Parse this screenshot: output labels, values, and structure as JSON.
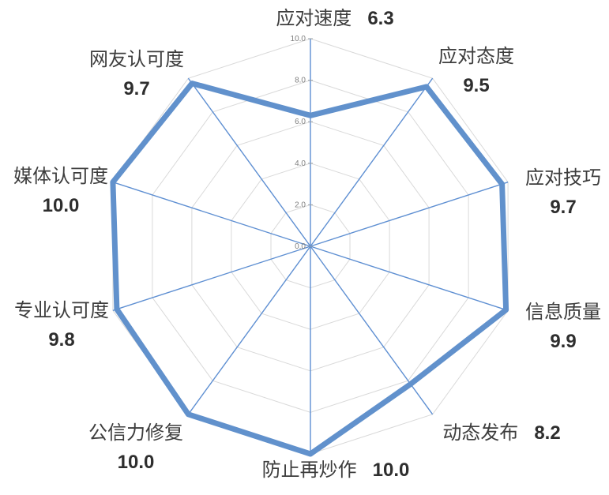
{
  "chart_data": {
    "type": "radar",
    "categories": [
      "应对速度",
      "应对态度",
      "应对技巧",
      "信息质量",
      "动态发布",
      "防止再炒作",
      "公信力修复",
      "专业认可度",
      "媒体认可度",
      "网友认可度"
    ],
    "values": [
      6.3,
      9.5,
      9.7,
      9.9,
      8.2,
      10.0,
      10.0,
      9.8,
      10.0,
      9.7
    ],
    "value_labels": [
      "6.3",
      "9.5",
      "9.7",
      "9.9",
      "8.2",
      "10.0",
      "10.0",
      "9.8",
      "10.0",
      "9.7"
    ],
    "axis": {
      "min": 0,
      "max": 10,
      "step": 2,
      "tick_labels": [
        "0.0",
        "2.0",
        "4.0",
        "6.0",
        "8.0",
        "10.0"
      ]
    },
    "grid": true,
    "legend_position": "none",
    "title": "",
    "colors": {
      "series_stroke": "#6191cc",
      "spoke_stroke": "#5e8fd2",
      "grid_stroke": "#d9d9d9",
      "tick_text": "#7f7f7f",
      "tick_mark": "#9aa0a6",
      "label_text": "#3d3d3d"
    }
  }
}
